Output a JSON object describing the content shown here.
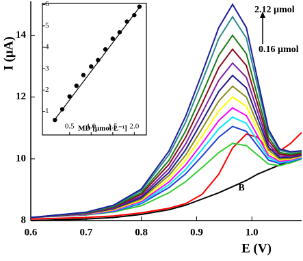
{
  "chart_data": [
    {
      "type": "line",
      "x_label": "E (V)",
      "y_label": "I (µA)",
      "x": [
        0.6,
        0.7,
        0.75,
        0.8,
        0.85,
        0.88,
        0.91,
        0.94,
        0.965,
        0.99,
        1.01,
        1.03,
        1.05,
        1.07,
        1.09
      ],
      "xlim": [
        0.6,
        1.09
      ],
      "ylim": [
        8,
        15.1
      ],
      "xticks": [
        0.6,
        0.7,
        0.8,
        0.9,
        {
          "value": 1.0,
          "label": "1.0"
        }
      ],
      "yticks": [
        8,
        10,
        12,
        14
      ],
      "series": [
        {
          "color": "#000000",
          "values": [
            8.0,
            8.05,
            8.1,
            8.2,
            8.35,
            8.5,
            8.7,
            8.9,
            9.1,
            9.3,
            9.5,
            9.65,
            9.8,
            9.95,
            10.1
          ]
        },
        {
          "color": "#ff0000",
          "values": [
            8.05,
            8.1,
            8.15,
            8.25,
            8.4,
            8.55,
            8.85,
            9.5,
            10.35,
            10.8,
            10.7,
            10.3,
            10.25,
            10.5,
            10.85
          ]
        },
        {
          "color": "#33cc33",
          "values": [
            8.1,
            8.18,
            8.28,
            8.48,
            8.9,
            9.26,
            9.72,
            10.2,
            10.5,
            10.43,
            10.13,
            9.83,
            9.78,
            9.87,
            9.99
          ]
        },
        {
          "color": "#1f3fd6",
          "values": [
            8.1,
            8.19,
            8.3,
            8.55,
            9.07,
            9.51,
            10.09,
            10.7,
            11.05,
            10.89,
            10.43,
            9.96,
            9.85,
            9.91,
            10.02
          ]
        },
        {
          "color": "#00e5ff",
          "values": [
            8.1,
            8.2,
            8.32,
            8.58,
            9.16,
            9.65,
            10.3,
            10.97,
            11.35,
            11.15,
            10.59,
            10.04,
            9.88,
            9.94,
            10.04
          ]
        },
        {
          "color": "#ff00ff",
          "values": [
            8.1,
            8.2,
            8.33,
            8.62,
            9.25,
            9.8,
            10.5,
            11.24,
            11.65,
            11.4,
            10.76,
            10.11,
            9.92,
            9.96,
            10.06
          ]
        },
        {
          "color": "#ffff00",
          "values": [
            8.1,
            8.21,
            8.35,
            8.66,
            9.35,
            9.96,
            10.74,
            11.55,
            12.0,
            11.7,
            10.95,
            10.2,
            9.96,
            9.99,
            10.08
          ]
        },
        {
          "color": "#8b8b1a",
          "values": [
            8.1,
            8.22,
            8.37,
            8.7,
            9.46,
            10.12,
            10.98,
            11.87,
            12.35,
            12.0,
            11.14,
            10.29,
            10.0,
            10.02,
            10.1
          ]
        },
        {
          "color": "#1a1a8c",
          "values": [
            8.1,
            8.22,
            8.39,
            8.74,
            9.56,
            10.29,
            11.22,
            12.18,
            12.7,
            12.3,
            11.34,
            10.38,
            10.04,
            10.05,
            10.12
          ]
        },
        {
          "color": "#7a1fa2",
          "values": [
            8.1,
            8.23,
            8.41,
            8.79,
            9.68,
            10.48,
            11.49,
            12.54,
            13.1,
            12.64,
            11.56,
            10.48,
            10.09,
            10.08,
            10.15
          ]
        },
        {
          "color": "#8b0a1a",
          "values": [
            8.1,
            8.24,
            8.43,
            8.85,
            9.82,
            10.69,
            11.79,
            12.95,
            13.55,
            13.02,
            11.8,
            10.59,
            10.15,
            10.11,
            10.17
          ]
        },
        {
          "color": "#1a7a1a",
          "values": [
            8.1,
            8.25,
            8.45,
            8.9,
            9.95,
            10.9,
            12.1,
            13.35,
            14.0,
            13.4,
            12.05,
            10.7,
            10.2,
            10.15,
            10.2
          ]
        },
        {
          "color": "#2a8a8a",
          "values": [
            8.1,
            8.26,
            8.48,
            8.97,
            10.13,
            11.18,
            12.51,
            13.89,
            14.6,
            13.91,
            12.38,
            10.85,
            10.27,
            10.2,
            10.24
          ]
        },
        {
          "color": "#1c1c9c",
          "values": [
            8.1,
            8.27,
            8.5,
            9.02,
            10.25,
            11.37,
            12.78,
            14.25,
            15.0,
            14.25,
            12.6,
            10.95,
            10.32,
            10.23,
            10.26
          ]
        }
      ],
      "annotations": [
        "2.12 µmol",
        "0.16 µmol",
        "B"
      ]
    },
    {
      "type": "scatter",
      "x_label": "MD [µmol L⁻¹]",
      "x": [
        0.16,
        0.33,
        0.5,
        0.66,
        0.82,
        1.0,
        1.16,
        1.33,
        1.5,
        1.66,
        1.83,
        2.0,
        2.12
      ],
      "values": [
        0.6,
        1.1,
        1.7,
        2.2,
        2.7,
        3.1,
        3.4,
        3.9,
        4.4,
        4.7,
        5.2,
        5.5,
        5.9
      ],
      "fit_x": [
        0.13,
        2.15
      ],
      "fit_y": [
        0.55,
        5.95
      ],
      "xlim": [
        -0.13,
        2.28
      ],
      "ylim": [
        -0.1,
        6.05
      ],
      "xticks": [
        0.5,
        {
          "value": 1.0,
          "label": "1.0"
        },
        1.5,
        {
          "value": 2.0,
          "label": "2.0"
        }
      ],
      "yticks": [
        1,
        2,
        3,
        4,
        5,
        6
      ],
      "color": "#000000"
    }
  ]
}
